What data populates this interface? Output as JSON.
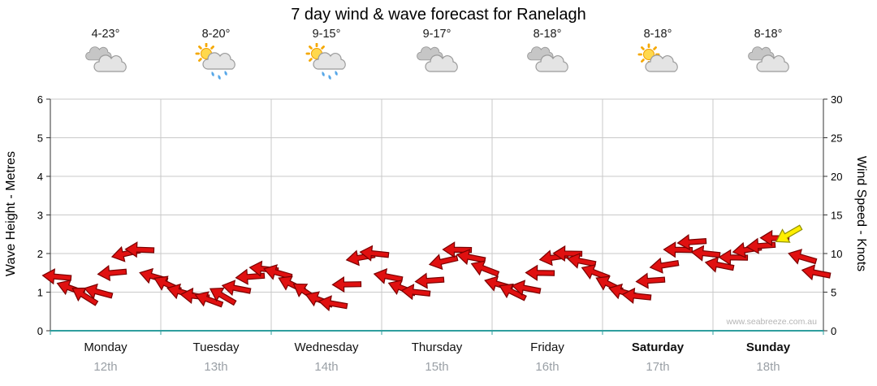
{
  "title": "7 day wind & wave forecast for Ranelagh",
  "watermark": "www.seabreeze.com.au",
  "days": [
    {
      "name": "Monday",
      "date": "12th",
      "temp": "4-23°",
      "icon": "cloudy",
      "bold": false
    },
    {
      "name": "Tuesday",
      "date": "13th",
      "temp": "8-20°",
      "icon": "sun-rain",
      "bold": false
    },
    {
      "name": "Wednesday",
      "date": "14th",
      "temp": "9-15°",
      "icon": "sun-rain",
      "bold": false
    },
    {
      "name": "Thursday",
      "date": "15th",
      "temp": "9-17°",
      "icon": "cloudy",
      "bold": false
    },
    {
      "name": "Friday",
      "date": "16th",
      "temp": "8-18°",
      "icon": "cloudy",
      "bold": false
    },
    {
      "name": "Saturday",
      "date": "17th",
      "temp": "8-18°",
      "icon": "partly-cloudy",
      "bold": true
    },
    {
      "name": "Sunday",
      "date": "18th",
      "temp": "8-18°",
      "icon": "cloudy",
      "bold": true
    }
  ],
  "chart_data": {
    "type": "wind-arrow-series",
    "title": "7 day wind & wave forecast for Ranelagh",
    "categories": [
      "Monday 12th",
      "Tuesday 13th",
      "Wednesday 14th",
      "Thursday 15th",
      "Friday 16th",
      "Saturday 17th",
      "Sunday 18th"
    ],
    "left_axis": {
      "title": "Wave Height - Metres",
      "ticks": [
        0,
        1,
        2,
        3,
        4,
        5,
        6
      ],
      "range": [
        0,
        6
      ]
    },
    "right_axis": {
      "title": "Wind Speed - Knots",
      "ticks": [
        0,
        5,
        10,
        15,
        20,
        25,
        30
      ],
      "range": [
        0,
        30
      ]
    },
    "units": "each arrow = forecast wind in knots (right axis); equivalent wave height metres = knots / 5; x = day fraction 0-7 across the week; angle deg clockwise, 180 = pointing left (westward)",
    "grid": true,
    "wind_knots_series": [
      [
        0.0625,
        7,
        185
      ],
      [
        0.1875,
        5.5,
        200
      ],
      [
        0.3125,
        4.5,
        212
      ],
      [
        0.4375,
        5,
        195
      ],
      [
        0.5625,
        7.5,
        175
      ],
      [
        0.6875,
        10,
        167
      ],
      [
        0.8125,
        10.5,
        182
      ],
      [
        0.9375,
        7,
        196
      ],
      [
        1.0625,
        6,
        205
      ],
      [
        1.1875,
        5,
        196
      ],
      [
        1.3125,
        4.5,
        186
      ],
      [
        1.4375,
        4,
        200
      ],
      [
        1.5625,
        4.5,
        210
      ],
      [
        1.6875,
        5.5,
        191
      ],
      [
        1.8125,
        7,
        176
      ],
      [
        1.9375,
        8,
        186
      ],
      [
        2.0625,
        7.5,
        196
      ],
      [
        2.1875,
        6,
        206
      ],
      [
        2.3125,
        5,
        214
      ],
      [
        2.4375,
        4,
        201
      ],
      [
        2.5625,
        3.5,
        190
      ],
      [
        2.6875,
        6,
        179
      ],
      [
        2.8125,
        9.5,
        170
      ],
      [
        2.9375,
        10,
        186
      ],
      [
        3.0625,
        7,
        191
      ],
      [
        3.1875,
        5.5,
        201
      ],
      [
        3.3125,
        5,
        186
      ],
      [
        3.4375,
        6.5,
        176
      ],
      [
        3.5625,
        9,
        167
      ],
      [
        3.6875,
        10.5,
        181
      ],
      [
        3.8125,
        9.5,
        191
      ],
      [
        3.9375,
        8,
        201
      ],
      [
        4.0625,
        6,
        196
      ],
      [
        4.1875,
        5,
        206
      ],
      [
        4.3125,
        5.5,
        191
      ],
      [
        4.4375,
        7.5,
        181
      ],
      [
        4.5625,
        9.5,
        171
      ],
      [
        4.6875,
        10,
        181
      ],
      [
        4.8125,
        9,
        191
      ],
      [
        4.9375,
        7.5,
        201
      ],
      [
        5.0625,
        6,
        206
      ],
      [
        5.1875,
        5,
        196
      ],
      [
        5.3125,
        4.5,
        186
      ],
      [
        5.4375,
        6.5,
        176
      ],
      [
        5.5625,
        8.5,
        171
      ],
      [
        5.6875,
        10.5,
        181
      ],
      [
        5.8125,
        11.5,
        176
      ],
      [
        5.9375,
        10,
        186
      ],
      [
        6.0625,
        8.5,
        191
      ],
      [
        6.1875,
        9.5,
        181
      ],
      [
        6.3125,
        10.5,
        171
      ],
      [
        6.4375,
        11,
        176
      ],
      [
        6.5625,
        12,
        181
      ],
      [
        6.6875,
        12.5,
        150
      ],
      [
        6.8125,
        9.5,
        196
      ],
      [
        6.9375,
        7.5,
        191
      ]
    ],
    "highlight_index": 53,
    "colors": {
      "arrow": "#e01010",
      "arrow_outline": "#7a0000",
      "highlight": "#ffee00",
      "highlight_outline": "#8f8f00",
      "grid": "#c9c9c9",
      "axis": "#333333",
      "axis_bottom": "#2f9e9e",
      "day_text": "#111111",
      "date_text": "#9aa0a6",
      "watermark_text": "#b5b5b5"
    }
  }
}
